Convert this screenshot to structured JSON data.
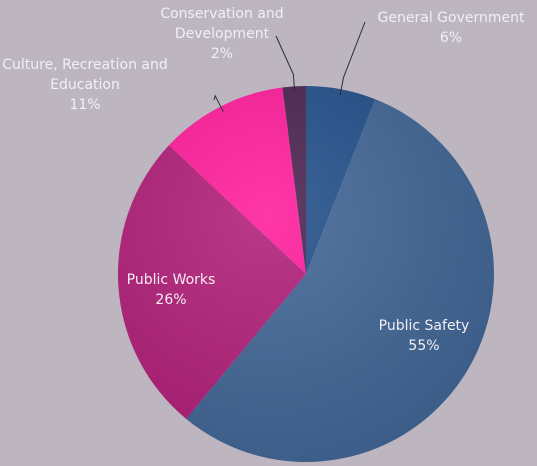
{
  "chart_data": {
    "type": "pie",
    "slices": [
      {
        "name": "General Government",
        "value": 6,
        "value_label": "6%",
        "color": "#234f8a"
      },
      {
        "name": "Public Safety",
        "value": 55,
        "value_label": "55%",
        "color": "#3f6594"
      },
      {
        "name": "Public Works",
        "value": 26,
        "value_label": "26%",
        "color": "#b11e78"
      },
      {
        "name": "Culture, Recreation and Education",
        "value": 11,
        "value_label": "11%",
        "color": "#ff1c9b"
      },
      {
        "name": "Conservation and Development",
        "value": 2,
        "value_label": "2%",
        "color": "#4a2350"
      }
    ],
    "legend": "none",
    "data_labels": "category-and-percent"
  },
  "colors": {
    "background": "#bdb6c1",
    "label_text": "#f4eef5",
    "leader_line": "#2a2a3a"
  }
}
